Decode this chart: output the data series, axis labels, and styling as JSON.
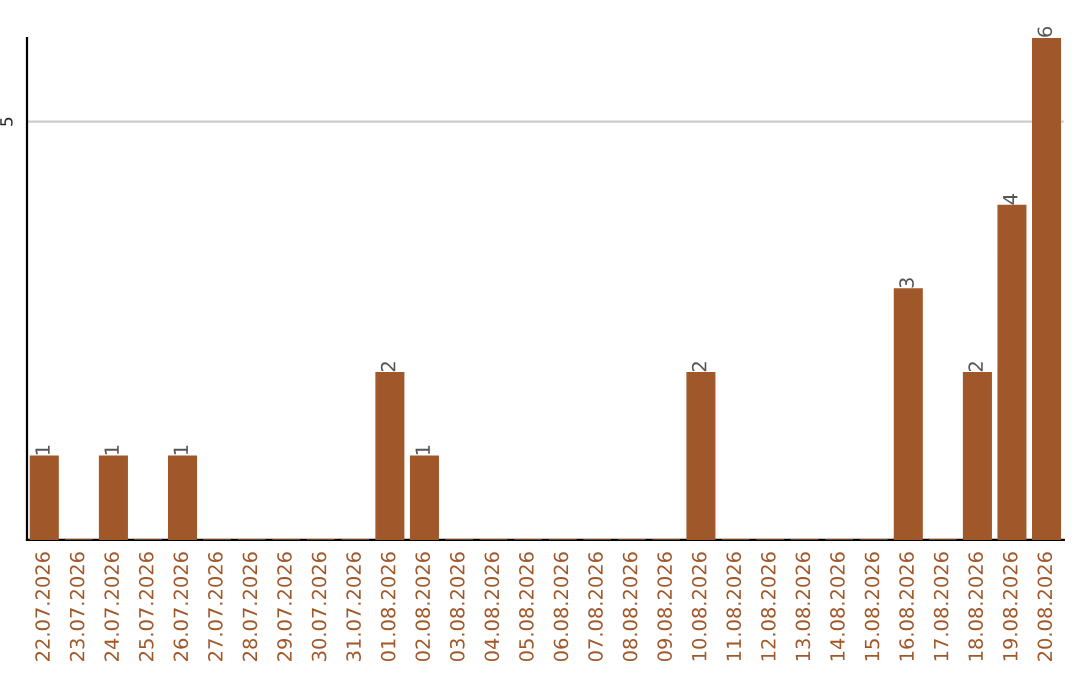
{
  "chart_data": {
    "type": "bar",
    "categories": [
      "22.07.2026",
      "23.07.2026",
      "24.07.2026",
      "25.07.2026",
      "26.07.2026",
      "27.07.2026",
      "28.07.2026",
      "29.07.2026",
      "30.07.2026",
      "31.07.2026",
      "01.08.2026",
      "02.08.2026",
      "03.08.2026",
      "04.08.2026",
      "05.08.2026",
      "06.08.2026",
      "07.08.2026",
      "08.08.2026",
      "09.08.2026",
      "10.08.2026",
      "11.08.2026",
      "12.08.2026",
      "13.08.2026",
      "14.08.2026",
      "15.08.2026",
      "16.08.2026",
      "17.08.2026",
      "18.08.2026",
      "19.08.2026",
      "20.08.2026"
    ],
    "values": [
      1,
      0,
      1,
      0,
      1,
      0,
      0,
      0,
      0,
      0,
      2,
      1,
      0,
      0,
      0,
      0,
      0,
      0,
      0,
      2,
      0,
      0,
      0,
      0,
      0,
      3,
      0,
      2,
      4,
      6
    ],
    "value_labels": [
      "1",
      null,
      "1",
      null,
      "1",
      null,
      null,
      null,
      null,
      null,
      "2",
      "1",
      null,
      null,
      null,
      null,
      null,
      null,
      null,
      "2",
      null,
      null,
      null,
      null,
      null,
      "3",
      null,
      "2",
      "4",
      "6"
    ],
    "color": "#a0582a",
    "ylim": [
      0,
      6
    ],
    "yticks": [
      5
    ],
    "grid": "y"
  }
}
